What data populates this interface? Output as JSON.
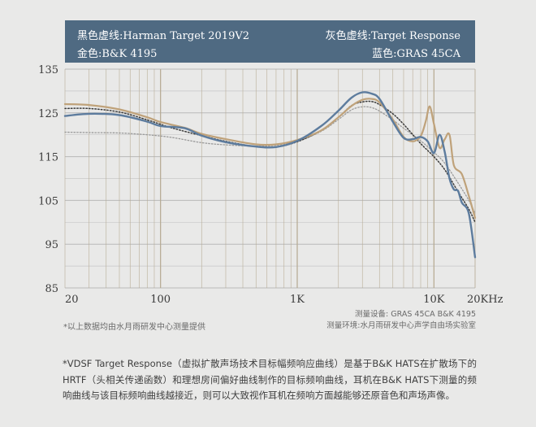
{
  "legend": {
    "black_dotted": "黑色虚线:Harman Target 2019V2",
    "gray_dotted": "灰色虚线:Target Response",
    "gold": "金色:B&K 4195",
    "blue": "蓝色:GRAS 45CA"
  },
  "colors": {
    "legend_bg": "#4f6a82",
    "gold": "#bfa27a",
    "blue": "#5d7c9e",
    "black_dotted": "#3c3c3c",
    "gray_dotted": "#9a9a9a",
    "grid_vertical": "#b6aa92",
    "grid_horizontal": "#c8c8c8",
    "axis_text": "#3a3a3a"
  },
  "footnote_left": "*以上数据均由水月雨研发中心测量提供",
  "meta": {
    "line1": "测量设备:  GRAS 45CA    B&K 4195",
    "line2": "测量环境:水月雨研发中心声学自由场实验室"
  },
  "note": "*VDSF Target Response（虚拟扩散声场技术目标幅频响应曲线）是基于B&K HATS在扩散场下的HRTF（头相关传递函数）和理想房间偏好曲线制作的目标频响曲线，耳机在B&K HATS下测量的频响曲线与该目标频响曲线越接近，则可以大致视作耳机在频响方面越能够还原音色和声场声像。",
  "chart_data": {
    "type": "line",
    "xscale": "log",
    "xlim": [
      20,
      20000
    ],
    "ylim": [
      85,
      135
    ],
    "yticks": [
      85,
      95,
      105,
      115,
      125,
      135
    ],
    "xtick_labels": [
      {
        "value": 20,
        "label": "20"
      },
      {
        "value": 100,
        "label": "100"
      },
      {
        "value": 1000,
        "label": "1K"
      },
      {
        "value": 10000,
        "label": "10K"
      },
      {
        "value": 20000,
        "label": "20KHz"
      }
    ],
    "grid": "on",
    "series": [
      {
        "name": "Harman Target 2019V2",
        "style": "dotted",
        "color": "black",
        "x": [
          20,
          30,
          50,
          80,
          120,
          200,
          300,
          500,
          700,
          1000,
          1500,
          2000,
          2500,
          3000,
          3500,
          4000,
          5000,
          6000,
          8000,
          10000,
          12000,
          15000,
          18000,
          20000
        ],
        "y": [
          126.0,
          126.0,
          125.2,
          123.4,
          121.6,
          119.8,
          118.5,
          117.3,
          117.2,
          118.4,
          121.0,
          124.0,
          126.7,
          127.5,
          127.6,
          126.9,
          124.8,
          122.4,
          118.0,
          115.0,
          112.0,
          107.0,
          103.0,
          100.0
        ]
      },
      {
        "name": "Target Response",
        "style": "dotted",
        "color": "gray",
        "x": [
          20,
          30,
          50,
          80,
          120,
          200,
          300,
          500,
          700,
          1000,
          1500,
          2000,
          2500,
          3000,
          3500,
          4000,
          5000,
          6000,
          8000,
          10000,
          12000,
          15000,
          18000,
          20000
        ],
        "y": [
          120.6,
          120.5,
          120.4,
          120.0,
          119.4,
          118.2,
          117.7,
          117.4,
          117.6,
          118.5,
          120.8,
          123.5,
          125.7,
          126.4,
          126.2,
          125.4,
          123.4,
          121.5,
          118.6,
          116.0,
          113.5,
          109.0,
          105.0,
          102.0
        ]
      },
      {
        "name": "B&K 4195",
        "style": "solid",
        "color": "gold",
        "x": [
          20,
          30,
          50,
          80,
          100,
          150,
          200,
          300,
          500,
          700,
          1000,
          1500,
          2000,
          2500,
          3000,
          3500,
          4000,
          5000,
          6000,
          7000,
          8000,
          8700,
          9300,
          10000,
          11000,
          12000,
          13000,
          14000,
          16000,
          18000,
          20000
        ],
        "y": [
          127.0,
          126.8,
          125.8,
          124.0,
          122.9,
          121.6,
          120.2,
          119.0,
          117.8,
          117.8,
          118.8,
          121.0,
          124.0,
          126.6,
          128.0,
          128.2,
          127.4,
          123.5,
          119.5,
          118.5,
          119.7,
          123.0,
          126.5,
          122.5,
          117.0,
          119.0,
          120.0,
          113.0,
          111.0,
          106.0,
          101.0
        ]
      },
      {
        "name": "GRAS 45CA",
        "style": "solid",
        "color": "blue",
        "x": [
          20,
          30,
          50,
          80,
          100,
          150,
          200,
          300,
          500,
          700,
          1000,
          1500,
          2000,
          2500,
          3000,
          3500,
          4000,
          5000,
          6000,
          7000,
          8000,
          9000,
          10000,
          11000,
          12000,
          13000,
          14000,
          15000,
          16000,
          18000,
          20000
        ],
        "y": [
          124.3,
          124.8,
          124.5,
          123.0,
          122.0,
          121.5,
          119.8,
          118.3,
          117.3,
          117.2,
          118.6,
          122.0,
          125.5,
          128.5,
          129.7,
          129.4,
          128.2,
          123.0,
          119.3,
          119.0,
          119.5,
          118.5,
          115.8,
          120.0,
          116.0,
          110.0,
          107.5,
          107.2,
          104.5,
          102.0,
          92.0
        ]
      }
    ]
  }
}
